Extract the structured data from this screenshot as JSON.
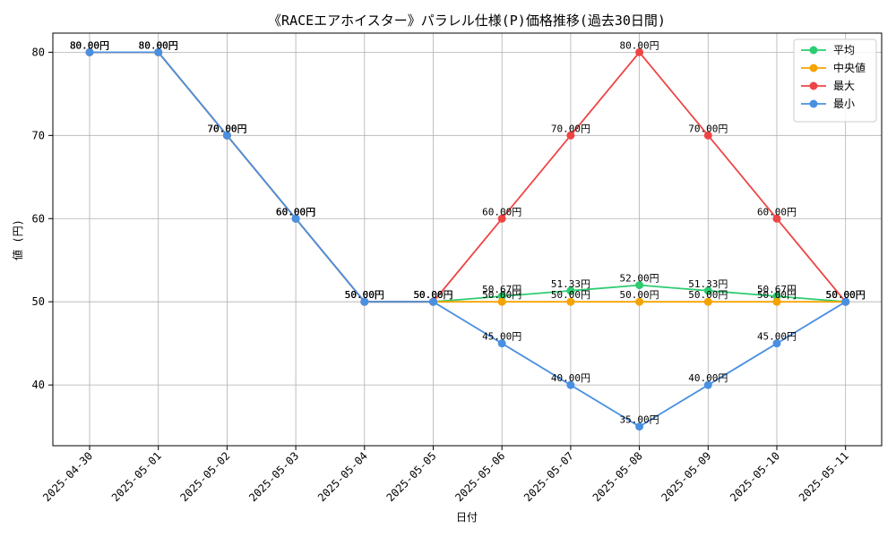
{
  "chart_data": {
    "type": "line",
    "title": "《RACEエアホイスター》パラレル仕様(P)価格推移(過去30日間)",
    "xlabel": "日付",
    "ylabel": "値 (円)",
    "categories": [
      "2025-04-30",
      "2025-05-01",
      "2025-05-02",
      "2025-05-03",
      "2025-05-04",
      "2025-05-05",
      "2025-05-06",
      "2025-05-07",
      "2025-05-08",
      "2025-05-09",
      "2025-05-10",
      "2025-05-11"
    ],
    "ylim": [
      32.7,
      82.3
    ],
    "yticks": [
      40,
      50,
      60,
      70,
      80
    ],
    "grid": true,
    "legend_position": "top-right",
    "label_suffix": "円",
    "series": [
      {
        "name": "平均",
        "color": "#2ecc71",
        "values": [
          80,
          80,
          70,
          60,
          50,
          50,
          50.67,
          51.33,
          52,
          51.33,
          50.67,
          50
        ],
        "labels": [
          "80.00円",
          "80.00円",
          "70.00円",
          "60.00円",
          "50.00円",
          "50.00円",
          "50.67円",
          "51.33円",
          "52.00円",
          "51.33円",
          "50.67円",
          "50.00円"
        ]
      },
      {
        "name": "中央値",
        "color": "#f5a300",
        "values": [
          80,
          80,
          70,
          60,
          50,
          50,
          50,
          50,
          50,
          50,
          50,
          50
        ],
        "labels": [
          "80.00円",
          "80.00円",
          "70.00円",
          "60.00円",
          "50.00円",
          "50.00円",
          "50.00円",
          "50.00円",
          "50.00円",
          "50.00円",
          "50.00円",
          "50.00円"
        ]
      },
      {
        "name": "最大",
        "color": "#ef4444",
        "values": [
          80,
          80,
          70,
          60,
          50,
          50,
          60,
          70,
          80,
          70,
          60,
          50
        ],
        "labels": [
          "80.00円",
          "80.00円",
          "70.00円",
          "60.00円",
          "50.00円",
          "50.00円",
          "60.00円",
          "70.00円",
          "80.00円",
          "70.00円",
          "60.00円",
          "50.00円"
        ]
      },
      {
        "name": "最小",
        "color": "#4a90e2",
        "values": [
          80,
          80,
          70,
          60,
          50,
          50,
          45,
          40,
          35,
          40,
          45,
          50
        ],
        "labels": [
          "80.00円",
          "80.00円",
          "70.00円",
          "60.00円",
          "50.00円",
          "50.00円",
          "45.00円",
          "40.00円",
          "35.00円",
          "40.00円",
          "45.00円",
          "50.00円"
        ]
      }
    ]
  }
}
